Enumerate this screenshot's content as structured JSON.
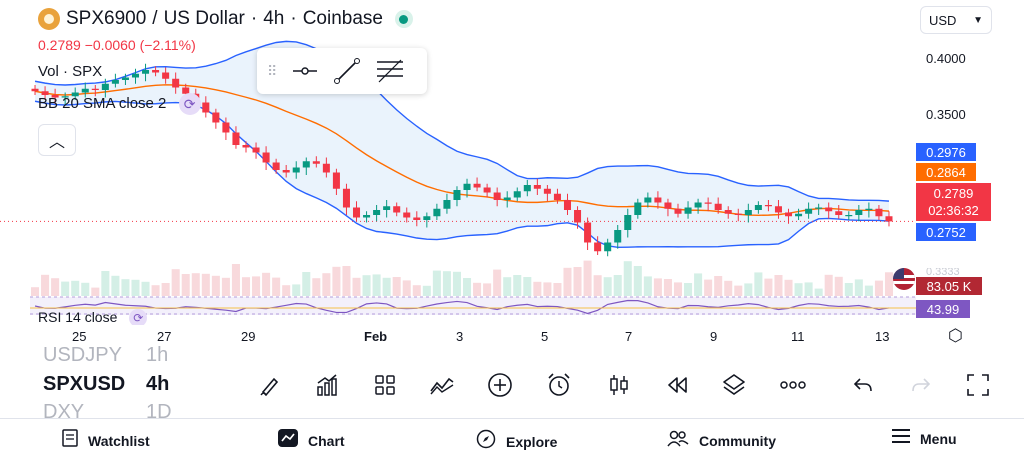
{
  "header": {
    "symbol": "SPX6900",
    "quote": "US Dollar",
    "interval": "4h",
    "exchange": "Coinbase"
  },
  "price_change": {
    "last": "0.2789",
    "change": "−0.0060",
    "percent": "(−2.11%)"
  },
  "indicators": {
    "vol": "Vol · SPX",
    "bb": "BB 20 SMA close 2",
    "rsi": "RSI 14 close"
  },
  "currency": "USD",
  "y_axis": {
    "labels": [
      "0.4000",
      "0.3500"
    ]
  },
  "price_tags": {
    "bb_upper": "0.2976",
    "bb_mid": "0.2864",
    "last": "0.2789",
    "countdown": "02:36:32",
    "bb_lower": "0.2752",
    "volume": "83.05 K",
    "rsi": "43.99",
    "volume_behind": "0.3333"
  },
  "colors": {
    "up": "#089981",
    "down": "#f23645",
    "bb_band": "#2962ff",
    "bb_mid": "#ff6d00",
    "rsi": "#7e57c2"
  },
  "x_axis": [
    "25",
    "27",
    "29",
    "Feb",
    "3",
    "5",
    "7",
    "9",
    "11",
    "13"
  ],
  "chart_data": {
    "type": "candlestick",
    "interval": "4h",
    "ylim": [
      0.24,
      0.42
    ],
    "close_series": [
      0.383,
      0.38,
      0.378,
      0.379,
      0.382,
      0.385,
      0.384,
      0.389,
      0.392,
      0.394,
      0.397,
      0.4,
      0.398,
      0.393,
      0.386,
      0.381,
      0.374,
      0.366,
      0.358,
      0.35,
      0.34,
      0.338,
      0.334,
      0.326,
      0.32,
      0.318,
      0.322,
      0.327,
      0.325,
      0.318,
      0.305,
      0.29,
      0.282,
      0.284,
      0.288,
      0.291,
      0.286,
      0.282,
      0.28,
      0.283,
      0.289,
      0.296,
      0.304,
      0.309,
      0.306,
      0.302,
      0.296,
      0.298,
      0.303,
      0.308,
      0.305,
      0.301,
      0.296,
      0.288,
      0.278,
      0.262,
      0.255,
      0.262,
      0.272,
      0.284,
      0.294,
      0.298,
      0.294,
      0.289,
      0.285,
      0.29,
      0.294,
      0.293,
      0.288,
      0.285,
      0.284,
      0.288,
      0.292,
      0.291,
      0.286,
      0.283,
      0.285,
      0.289,
      0.29,
      0.287,
      0.284,
      0.284,
      0.288,
      0.289,
      0.283,
      0.2789
    ]
  },
  "symbols_list": [
    {
      "ticker": "USDJPY",
      "interval": "1h"
    },
    {
      "ticker": "SPXUSD",
      "interval": "4h"
    },
    {
      "ticker": "DXY",
      "interval": "1D"
    }
  ],
  "tools": [
    "brush-icon",
    "chart-bars-icon",
    "grid-icon",
    "indicators-icon",
    "add-icon",
    "alarm-icon",
    "candles-icon",
    "replay-icon",
    "layers-icon",
    "more-icon",
    "undo-icon",
    "redo-icon",
    "fullscreen-icon"
  ],
  "nav": {
    "watchlist": "Watchlist",
    "chart": "Chart",
    "explore": "Explore",
    "community": "Community",
    "menu": "Menu"
  }
}
